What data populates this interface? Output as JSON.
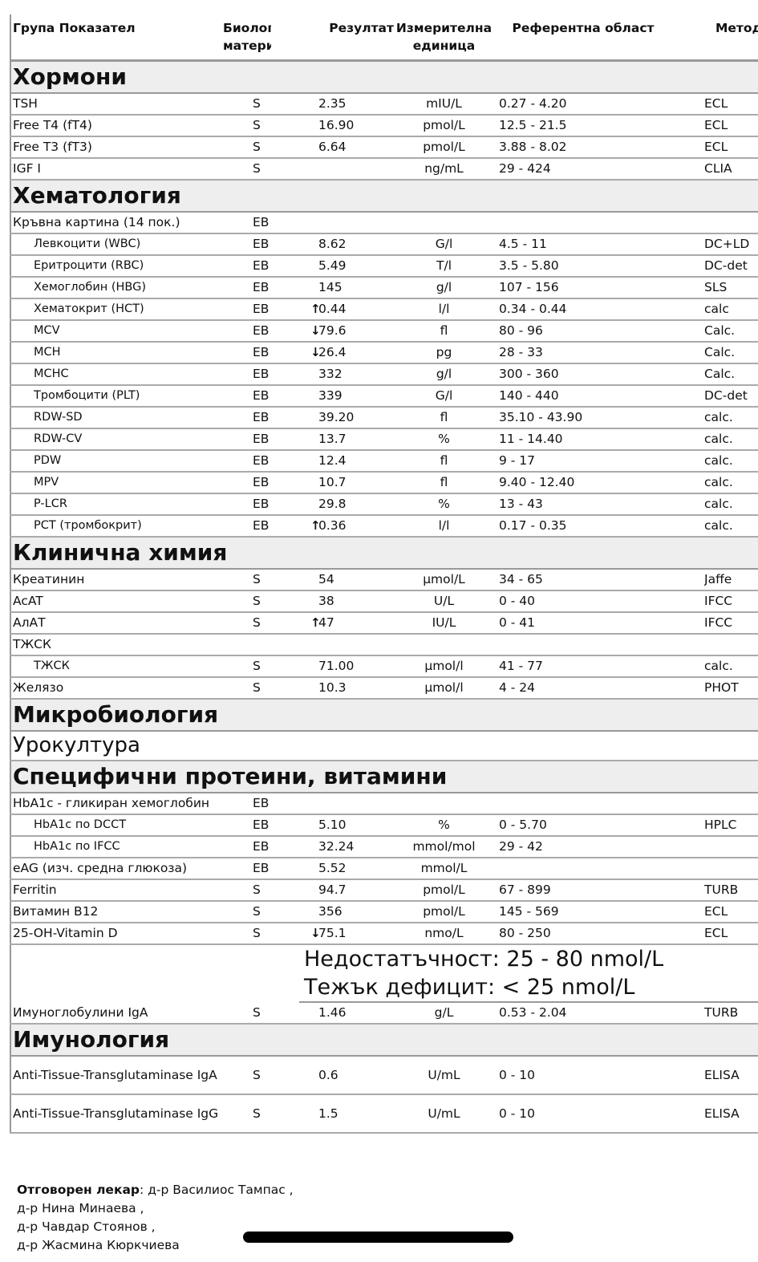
{
  "columns": {
    "name": "Група Показател",
    "material": "Биологичен материал",
    "result": "Резултат",
    "unit": "Измерителна единица",
    "ref": "Референтна област",
    "method": "Метод"
  },
  "sections": [
    {
      "title": "Хормони",
      "rows": [
        {
          "name": "TSH",
          "material": "S",
          "flag": "",
          "result": "2.35",
          "unit": "mIU/L",
          "ref": "0.27 - 4.20",
          "method": "ECL"
        },
        {
          "name": "Free T4 (fT4)",
          "material": "S",
          "flag": "",
          "result": "16.90",
          "unit": "pmol/L",
          "ref": "12.5 - 21.5",
          "method": "ECL"
        },
        {
          "name": "Free T3 (fT3)",
          "material": "S",
          "flag": "",
          "result": "6.64",
          "unit": "pmol/L",
          "ref": "3.88 - 8.02",
          "method": "ECL"
        },
        {
          "name": "IGF I",
          "material": "S",
          "flag": "",
          "result": "",
          "unit": "ng/mL",
          "ref": "29 - 424",
          "method": "CLIA"
        }
      ]
    },
    {
      "title": "Хематология",
      "rows": [
        {
          "name": "Кръвна картина (14 пок.)",
          "material": "EB",
          "flag": "",
          "result": "",
          "unit": "",
          "ref": "",
          "method": ""
        },
        {
          "name": "Левкоцити (WBC)",
          "indent": true,
          "material": "EB",
          "flag": "",
          "result": "8.62",
          "unit": "G/l",
          "ref": "4.5 - 11",
          "method": "DC+LD"
        },
        {
          "name": "Еритроцити (RBC)",
          "indent": true,
          "material": "EB",
          "flag": "",
          "result": "5.49",
          "unit": "T/l",
          "ref": "3.5 - 5.80",
          "method": "DC-det"
        },
        {
          "name": "Хемоглобин (HBG)",
          "indent": true,
          "material": "EB",
          "flag": "",
          "result": "145",
          "unit": "g/l",
          "ref": "107 - 156",
          "method": "SLS"
        },
        {
          "name": "Хематокрит (HCT)",
          "indent": true,
          "material": "EB",
          "flag": "high",
          "result": "0.44",
          "unit": "l/l",
          "ref": "0.34 - 0.44",
          "method": "calc"
        },
        {
          "name": "MCV",
          "indent": true,
          "material": "EB",
          "flag": "low",
          "result": "79.6",
          "unit": "fl",
          "ref": "80 - 96",
          "method": "Calc."
        },
        {
          "name": "MCH",
          "indent": true,
          "material": "EB",
          "flag": "low",
          "result": "26.4",
          "unit": "pg",
          "ref": "28 - 33",
          "method": "Calc."
        },
        {
          "name": "MCHC",
          "indent": true,
          "material": "EB",
          "flag": "",
          "result": "332",
          "unit": "g/l",
          "ref": "300 - 360",
          "method": "Calc."
        },
        {
          "name": "Тромбоцити (PLT)",
          "indent": true,
          "material": "EB",
          "flag": "",
          "result": "339",
          "unit": "G/l",
          "ref": "140 - 440",
          "method": "DC-det"
        },
        {
          "name": "RDW-SD",
          "indent": true,
          "material": "EB",
          "flag": "",
          "result": "39.20",
          "unit": "fl",
          "ref": "35.10 - 43.90",
          "method": "calc."
        },
        {
          "name": "RDW-CV",
          "indent": true,
          "material": "EB",
          "flag": "",
          "result": "13.7",
          "unit": "%",
          "ref": "11 - 14.40",
          "method": "calc."
        },
        {
          "name": "PDW",
          "indent": true,
          "material": "EB",
          "flag": "",
          "result": "12.4",
          "unit": "fl",
          "ref": "9 - 17",
          "method": "calc."
        },
        {
          "name": "MPV",
          "indent": true,
          "material": "EB",
          "flag": "",
          "result": "10.7",
          "unit": "fl",
          "ref": "9.40 - 12.40",
          "method": "calc."
        },
        {
          "name": "P-LCR",
          "indent": true,
          "material": "EB",
          "flag": "",
          "result": "29.8",
          "unit": "%",
          "ref": "13 - 43",
          "method": "calc."
        },
        {
          "name": "PCT (тромбокрит)",
          "indent": true,
          "material": "EB",
          "flag": "high",
          "result": "0.36",
          "unit": "l/l",
          "ref": "0.17 - 0.35",
          "method": "calc."
        }
      ]
    },
    {
      "title": "Клинична химия",
      "rows": [
        {
          "name": "Креатинин",
          "material": "S",
          "flag": "",
          "result": "54",
          "unit": "µmol/L",
          "ref": "34 - 65",
          "method": "Jaffe"
        },
        {
          "name": "AcAT",
          "material": "S",
          "flag": "",
          "result": "38",
          "unit": "U/L",
          "ref": "0 - 40",
          "method": "IFCC"
        },
        {
          "name": "АлАТ",
          "material": "S",
          "flag": "high",
          "result": "47",
          "unit": "IU/L",
          "ref": "0 - 41",
          "method": "IFCC"
        },
        {
          "name": "ТЖСК",
          "material": "",
          "flag": "",
          "result": "",
          "unit": "",
          "ref": "",
          "method": ""
        },
        {
          "name": "ТЖСК",
          "indent": true,
          "material": "S",
          "flag": "",
          "result": "71.00",
          "unit": "µmol/l",
          "ref": "41 - 77",
          "method": "calc."
        },
        {
          "name": "Желязо",
          "material": "S",
          "flag": "",
          "result": "10.3",
          "unit": "µmol/l",
          "ref": "4 - 24",
          "method": "PHOT"
        }
      ]
    },
    {
      "title": "Микробиология",
      "subtitle": "Урокултура",
      "rows": []
    },
    {
      "title": "Специфични протеини, витамини",
      "rows": [
        {
          "name": "HbA1c - гликиран хемоглобин",
          "material": "EB",
          "flag": "",
          "result": "",
          "unit": "",
          "ref": "",
          "method": ""
        },
        {
          "name": "HbA1c по DCCT",
          "indent": true,
          "material": "EB",
          "flag": "",
          "result": "5.10",
          "unit": "%",
          "ref": "0 - 5.70",
          "method": "HPLC"
        },
        {
          "name": "HbA1c по IFCC",
          "indent": true,
          "material": "EB",
          "flag": "",
          "result": "32.24",
          "unit": "mmol/mol",
          "ref": "29 - 42",
          "method": ""
        },
        {
          "name": "eAG (изч. средна глюкоза)",
          "material": "EB",
          "flag": "",
          "result": "5.52",
          "unit": "mmol/L",
          "ref": "",
          "method": ""
        },
        {
          "name": "Ferritin",
          "material": "S",
          "flag": "",
          "result": "94.7",
          "unit": "pmol/L",
          "ref": "67 - 899",
          "method": "TURB"
        },
        {
          "name": "Витамин B12",
          "material": "S",
          "flag": "",
          "result": "356",
          "unit": "pmol/L",
          "ref": "145 - 569",
          "method": "ECL"
        },
        {
          "name": "25-OH-Vitamin D",
          "material": "S",
          "flag": "low",
          "result": "75.1",
          "unit": "nmo/L",
          "ref": "80 - 250",
          "method": "ECL",
          "note": [
            "Недостатъчност: 25 - 80 nmol/L",
            "Тежък дефицит: < 25 nmol/L"
          ]
        },
        {
          "name": "Имуноглобулини IgA",
          "material": "S",
          "flag": "",
          "result": "1.46",
          "unit": "g/L",
          "ref": "0.53 - 2.04",
          "method": "TURB"
        }
      ]
    },
    {
      "title": "Имунология",
      "rows": [
        {
          "name": "Anti-Tissue-Transglutaminase IgA",
          "twoline": true,
          "material": "S",
          "flag": "",
          "result": "0.6",
          "unit": "U/mL",
          "ref": "0 - 10",
          "method": "ELISA"
        },
        {
          "name": "Anti-Tissue-Transglutaminase IgG",
          "twoline": true,
          "material": "S",
          "flag": "",
          "result": "1.5",
          "unit": "U/mL",
          "ref": "0 - 10",
          "method": "ELISA"
        }
      ]
    }
  ],
  "flag_icons": {
    "high": "▲ arrow-up-icon",
    "low": "▼ arrow-down-icon"
  },
  "footer": {
    "label": "Отговорен лекар",
    "doctors": [
      "д-р Василиос Тампас ,",
      "д-р Нина Минаева ,",
      "д-р Чавдар Стоянов ,",
      "д-р Жасмина Кюркчиева"
    ]
  }
}
